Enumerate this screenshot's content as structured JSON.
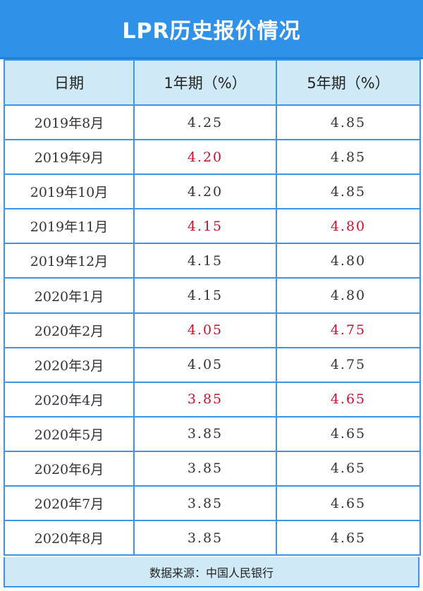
{
  "title": "LPR历史报价情况",
  "headers": [
    "日期",
    "1年期（%）",
    "5年期（%）"
  ],
  "colors": {
    "title_bg": "#2f92e8",
    "header_bg": "#cfeaf6",
    "border": "#3b95e8",
    "changed": "#c8102e",
    "text": "#333333"
  },
  "rows": [
    {
      "date": "2019年8月",
      "one_year": "4.25",
      "five_year": "4.85",
      "one_changed": false,
      "five_changed": false
    },
    {
      "date": "2019年9月",
      "one_year": "4.20",
      "five_year": "4.85",
      "one_changed": true,
      "five_changed": false
    },
    {
      "date": "2019年10月",
      "one_year": "4.20",
      "five_year": "4.85",
      "one_changed": false,
      "five_changed": false
    },
    {
      "date": "2019年11月",
      "one_year": "4.15",
      "five_year": "4.80",
      "one_changed": true,
      "five_changed": true
    },
    {
      "date": "2019年12月",
      "one_year": "4.15",
      "five_year": "4.80",
      "one_changed": false,
      "five_changed": false
    },
    {
      "date": "2020年1月",
      "one_year": "4.15",
      "five_year": "4.80",
      "one_changed": false,
      "five_changed": false
    },
    {
      "date": "2020年2月",
      "one_year": "4.05",
      "five_year": "4.75",
      "one_changed": true,
      "five_changed": true
    },
    {
      "date": "2020年3月",
      "one_year": "4.05",
      "five_year": "4.75",
      "one_changed": false,
      "five_changed": false
    },
    {
      "date": "2020年4月",
      "one_year": "3.85",
      "five_year": "4.65",
      "one_changed": true,
      "five_changed": true
    },
    {
      "date": "2020年5月",
      "one_year": "3.85",
      "five_year": "4.65",
      "one_changed": false,
      "five_changed": false
    },
    {
      "date": "2020年6月",
      "one_year": "3.85",
      "five_year": "4.65",
      "one_changed": false,
      "five_changed": false
    },
    {
      "date": "2020年7月",
      "one_year": "3.85",
      "five_year": "4.65",
      "one_changed": false,
      "five_changed": false
    },
    {
      "date": "2020年8月",
      "one_year": "3.85",
      "five_year": "4.65",
      "one_changed": false,
      "five_changed": false
    }
  ],
  "source": "数据来源：中国人民银行"
}
